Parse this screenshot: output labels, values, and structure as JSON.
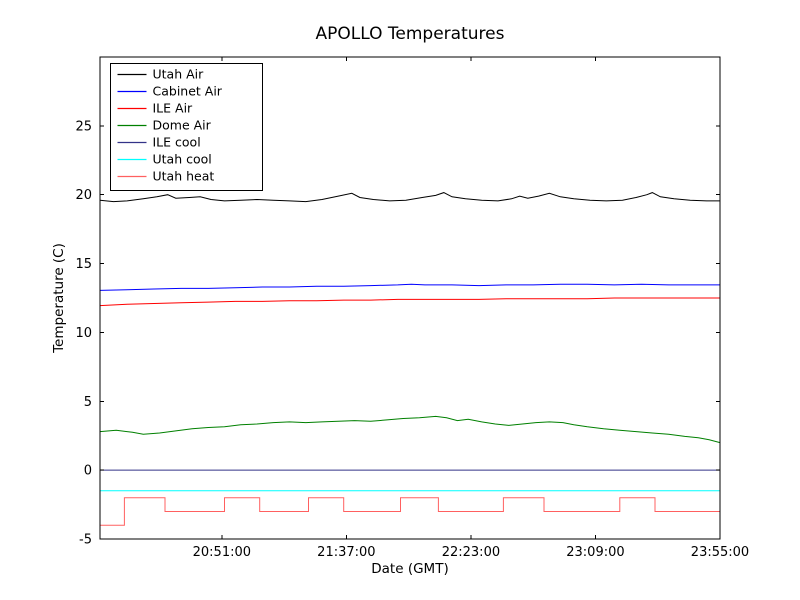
{
  "figure": {
    "background": "#ffffff",
    "frame_color": "#000000"
  },
  "chart_data": {
    "type": "line",
    "title": "APOLLO Temperatures",
    "xlabel": "Date (GMT)",
    "ylabel": "Temperature (C)",
    "xlim": [
      0,
      229
    ],
    "ylim": [
      -5,
      30
    ],
    "grid": false,
    "legend": {
      "position": "upper left"
    },
    "xticks": {
      "positions": [
        45,
        91,
        137,
        183,
        229
      ],
      "labels": [
        "20:51:00",
        "21:37:00",
        "22:23:00",
        "23:09:00",
        "23:55:00"
      ]
    },
    "yticks": {
      "positions": [
        -5,
        0,
        5,
        10,
        15,
        20,
        25
      ],
      "labels": [
        "-5",
        "0",
        "5",
        "10",
        "15",
        "20",
        "25"
      ]
    },
    "series": [
      {
        "name": "Utah Air",
        "color": "#000000",
        "points": [
          [
            0,
            19.6
          ],
          [
            5,
            19.5
          ],
          [
            10,
            19.55
          ],
          [
            16,
            19.7
          ],
          [
            21,
            19.85
          ],
          [
            25,
            20.0
          ],
          [
            28,
            19.75
          ],
          [
            33,
            19.8
          ],
          [
            37,
            19.85
          ],
          [
            41,
            19.65
          ],
          [
            46,
            19.55
          ],
          [
            52,
            19.6
          ],
          [
            58,
            19.65
          ],
          [
            64,
            19.6
          ],
          [
            70,
            19.55
          ],
          [
            76,
            19.5
          ],
          [
            82,
            19.65
          ],
          [
            88,
            19.9
          ],
          [
            93,
            20.1
          ],
          [
            96,
            19.8
          ],
          [
            101,
            19.65
          ],
          [
            107,
            19.55
          ],
          [
            113,
            19.6
          ],
          [
            119,
            19.8
          ],
          [
            124,
            19.95
          ],
          [
            127,
            20.15
          ],
          [
            130,
            19.85
          ],
          [
            135,
            19.7
          ],
          [
            141,
            19.6
          ],
          [
            147,
            19.55
          ],
          [
            152,
            19.7
          ],
          [
            155,
            19.9
          ],
          [
            158,
            19.75
          ],
          [
            162,
            19.9
          ],
          [
            166,
            20.1
          ],
          [
            170,
            19.85
          ],
          [
            175,
            19.7
          ],
          [
            181,
            19.6
          ],
          [
            187,
            19.55
          ],
          [
            193,
            19.6
          ],
          [
            198,
            19.8
          ],
          [
            202,
            20.0
          ],
          [
            204,
            20.15
          ],
          [
            207,
            19.85
          ],
          [
            212,
            19.7
          ],
          [
            218,
            19.6
          ],
          [
            224,
            19.55
          ],
          [
            229,
            19.55
          ]
        ]
      },
      {
        "name": "Cabinet Air",
        "color": "#0000ff",
        "points": [
          [
            0,
            13.05
          ],
          [
            10,
            13.1
          ],
          [
            20,
            13.15
          ],
          [
            30,
            13.2
          ],
          [
            40,
            13.2
          ],
          [
            50,
            13.25
          ],
          [
            60,
            13.3
          ],
          [
            70,
            13.3
          ],
          [
            80,
            13.35
          ],
          [
            90,
            13.35
          ],
          [
            100,
            13.4
          ],
          [
            110,
            13.45
          ],
          [
            115,
            13.5
          ],
          [
            120,
            13.45
          ],
          [
            130,
            13.45
          ],
          [
            140,
            13.4
          ],
          [
            150,
            13.45
          ],
          [
            160,
            13.45
          ],
          [
            170,
            13.5
          ],
          [
            180,
            13.5
          ],
          [
            190,
            13.45
          ],
          [
            200,
            13.5
          ],
          [
            210,
            13.45
          ],
          [
            220,
            13.45
          ],
          [
            229,
            13.45
          ]
        ]
      },
      {
        "name": "ILE Air",
        "color": "#ff0000",
        "points": [
          [
            0,
            11.95
          ],
          [
            10,
            12.05
          ],
          [
            20,
            12.1
          ],
          [
            30,
            12.15
          ],
          [
            40,
            12.2
          ],
          [
            50,
            12.25
          ],
          [
            60,
            12.25
          ],
          [
            70,
            12.3
          ],
          [
            80,
            12.3
          ],
          [
            90,
            12.35
          ],
          [
            100,
            12.35
          ],
          [
            110,
            12.4
          ],
          [
            120,
            12.4
          ],
          [
            130,
            12.4
          ],
          [
            140,
            12.4
          ],
          [
            150,
            12.45
          ],
          [
            160,
            12.45
          ],
          [
            170,
            12.45
          ],
          [
            180,
            12.45
          ],
          [
            190,
            12.5
          ],
          [
            200,
            12.5
          ],
          [
            210,
            12.5
          ],
          [
            220,
            12.5
          ],
          [
            229,
            12.5
          ]
        ]
      },
      {
        "name": "Dome Air",
        "color": "#008000",
        "points": [
          [
            0,
            2.8
          ],
          [
            6,
            2.9
          ],
          [
            12,
            2.75
          ],
          [
            16,
            2.6
          ],
          [
            22,
            2.7
          ],
          [
            28,
            2.85
          ],
          [
            34,
            3.0
          ],
          [
            40,
            3.1
          ],
          [
            46,
            3.15
          ],
          [
            52,
            3.3
          ],
          [
            58,
            3.35
          ],
          [
            64,
            3.45
          ],
          [
            70,
            3.5
          ],
          [
            76,
            3.45
          ],
          [
            82,
            3.5
          ],
          [
            88,
            3.55
          ],
          [
            94,
            3.6
          ],
          [
            100,
            3.55
          ],
          [
            106,
            3.65
          ],
          [
            112,
            3.75
          ],
          [
            118,
            3.8
          ],
          [
            124,
            3.9
          ],
          [
            128,
            3.8
          ],
          [
            132,
            3.6
          ],
          [
            136,
            3.7
          ],
          [
            141,
            3.5
          ],
          [
            146,
            3.35
          ],
          [
            151,
            3.25
          ],
          [
            156,
            3.35
          ],
          [
            161,
            3.45
          ],
          [
            166,
            3.5
          ],
          [
            171,
            3.45
          ],
          [
            175,
            3.3
          ],
          [
            180,
            3.15
          ],
          [
            186,
            3.0
          ],
          [
            192,
            2.9
          ],
          [
            198,
            2.8
          ],
          [
            204,
            2.7
          ],
          [
            210,
            2.6
          ],
          [
            216,
            2.45
          ],
          [
            221,
            2.35
          ],
          [
            225,
            2.2
          ],
          [
            229,
            2.0
          ]
        ]
      },
      {
        "name": "ILE cool",
        "color": "#333388",
        "points": [
          [
            0,
            0
          ],
          [
            229,
            0
          ]
        ]
      },
      {
        "name": "Utah cool",
        "color": "#00ffff",
        "points": [
          [
            0,
            -1.5
          ],
          [
            229,
            -1.5
          ]
        ]
      },
      {
        "name": "Utah heat",
        "color": "#ff6060",
        "points": [
          [
            0,
            -4
          ],
          [
            9,
            -4
          ],
          [
            9,
            -2
          ],
          [
            24,
            -2
          ],
          [
            24,
            -3
          ],
          [
            46,
            -3
          ],
          [
            46,
            -2
          ],
          [
            59,
            -2
          ],
          [
            59,
            -3
          ],
          [
            77,
            -3
          ],
          [
            77,
            -2
          ],
          [
            90,
            -2
          ],
          [
            90,
            -3
          ],
          [
            111,
            -3
          ],
          [
            111,
            -2
          ],
          [
            125,
            -2
          ],
          [
            125,
            -3
          ],
          [
            149,
            -3
          ],
          [
            149,
            -2
          ],
          [
            164,
            -2
          ],
          [
            164,
            -3
          ],
          [
            192,
            -3
          ],
          [
            192,
            -2
          ],
          [
            205,
            -2
          ],
          [
            205,
            -3
          ],
          [
            229,
            -3
          ]
        ]
      }
    ]
  }
}
